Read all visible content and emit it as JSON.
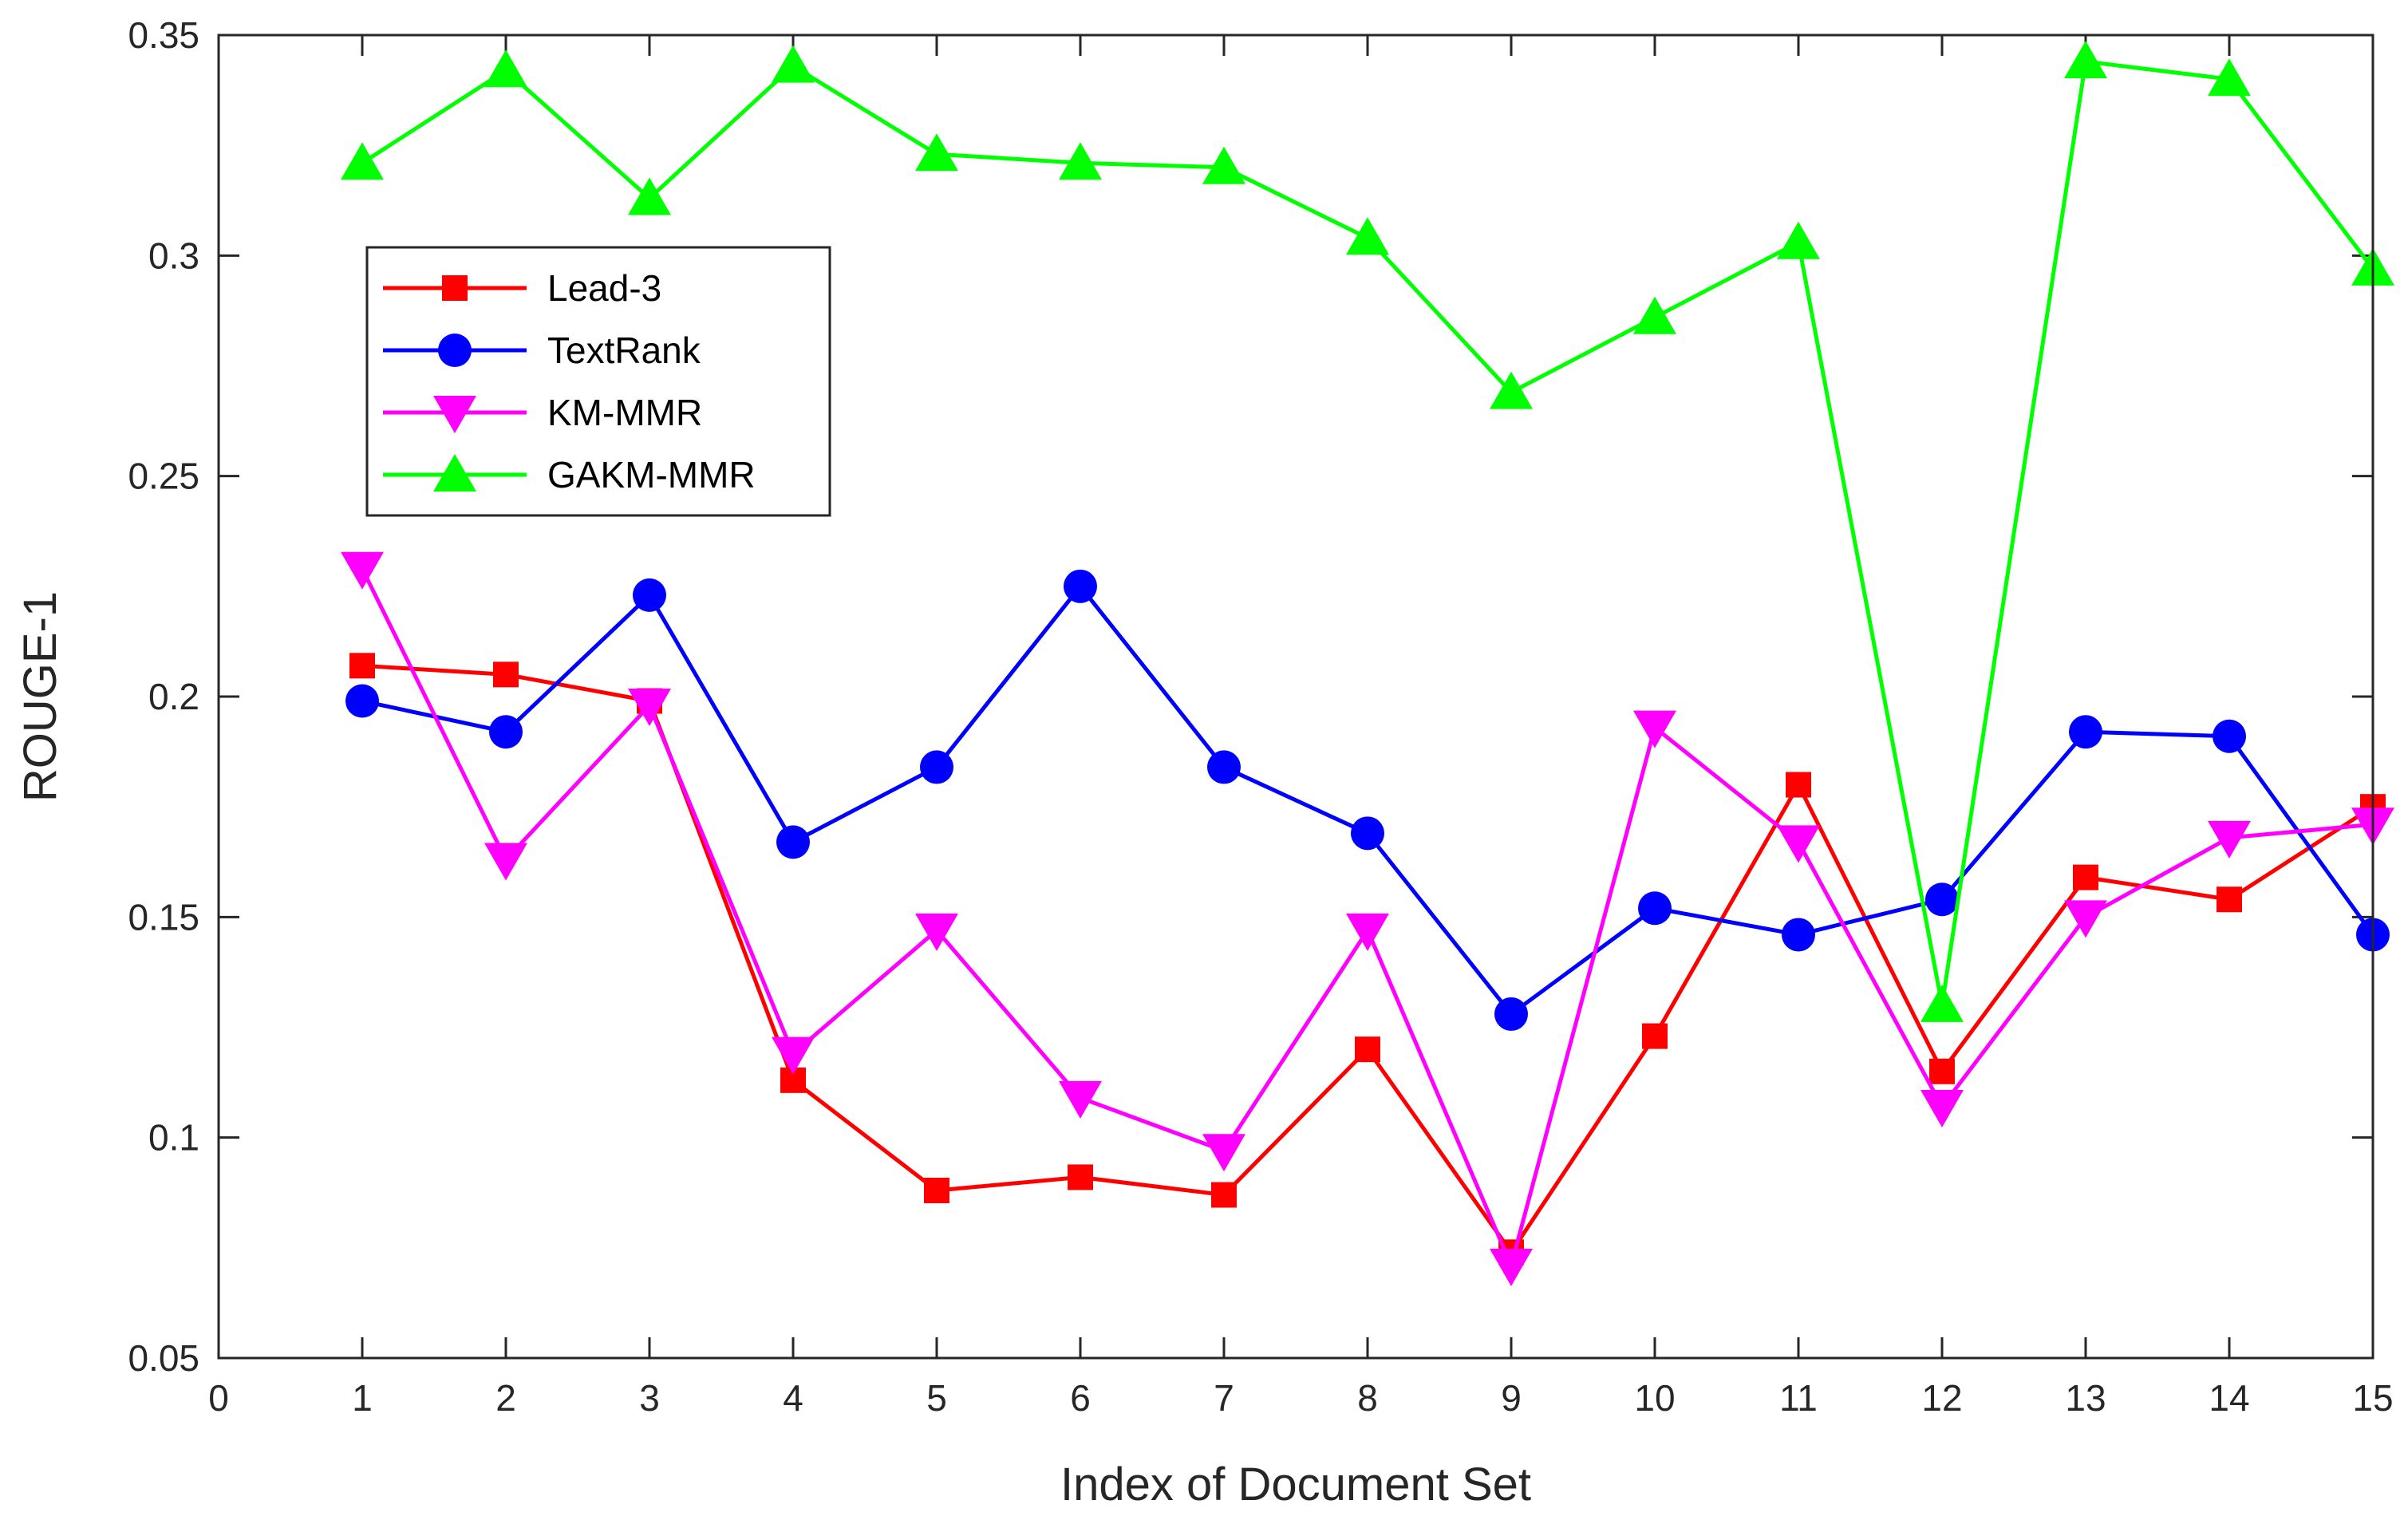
{
  "chart_data": {
    "type": "line",
    "title": "",
    "xlabel": "Index of Document Set",
    "ylabel": "ROUGE-1",
    "xlim": [
      0,
      15
    ],
    "ylim": [
      0.05,
      0.35
    ],
    "xticks": [
      0,
      1,
      2,
      3,
      4,
      5,
      6,
      7,
      8,
      9,
      10,
      11,
      12,
      13,
      14,
      15
    ],
    "xtick_labels": [
      "0",
      "1",
      "2",
      "3",
      "4",
      "5",
      "6",
      "7",
      "8",
      "9",
      "10",
      "11",
      "12",
      "13",
      "14",
      "15"
    ],
    "yticks": [
      0.05,
      0.1,
      0.15,
      0.2,
      0.25,
      0.3,
      0.35
    ],
    "ytick_labels": [
      "0.05",
      "0.1",
      "0.15",
      "0.2",
      "0.25",
      "0.3",
      "0.35"
    ],
    "legend_position": "upper-left",
    "x": [
      1,
      2,
      3,
      4,
      5,
      6,
      7,
      8,
      9,
      10,
      11,
      12,
      13,
      14,
      15
    ],
    "series": [
      {
        "name": "Lead-3",
        "color": "#ff0000",
        "marker": "square",
        "values": [
          0.207,
          0.205,
          0.199,
          0.113,
          0.088,
          0.091,
          0.087,
          0.12,
          0.074,
          0.123,
          0.18,
          0.115,
          0.159,
          0.154,
          0.175
        ]
      },
      {
        "name": "TextRank",
        "color": "#0000ff",
        "marker": "circle",
        "values": [
          0.199,
          0.192,
          0.223,
          0.167,
          0.184,
          0.225,
          0.184,
          0.169,
          0.128,
          0.152,
          0.146,
          0.154,
          0.192,
          0.191,
          0.146
        ]
      },
      {
        "name": "KM-MMR",
        "color": "#ff00ff",
        "marker": "triangle-down",
        "values": [
          0.229,
          0.163,
          0.198,
          0.119,
          0.147,
          0.109,
          0.097,
          0.147,
          0.071,
          0.193,
          0.167,
          0.107,
          0.15,
          0.168,
          0.171
        ]
      },
      {
        "name": "GAKM-MMR",
        "color": "#00ff00",
        "marker": "triangle-up",
        "values": [
          0.321,
          0.342,
          0.313,
          0.343,
          0.323,
          0.321,
          0.32,
          0.304,
          0.269,
          0.286,
          0.303,
          0.13,
          0.344,
          0.34,
          0.297
        ]
      }
    ]
  }
}
